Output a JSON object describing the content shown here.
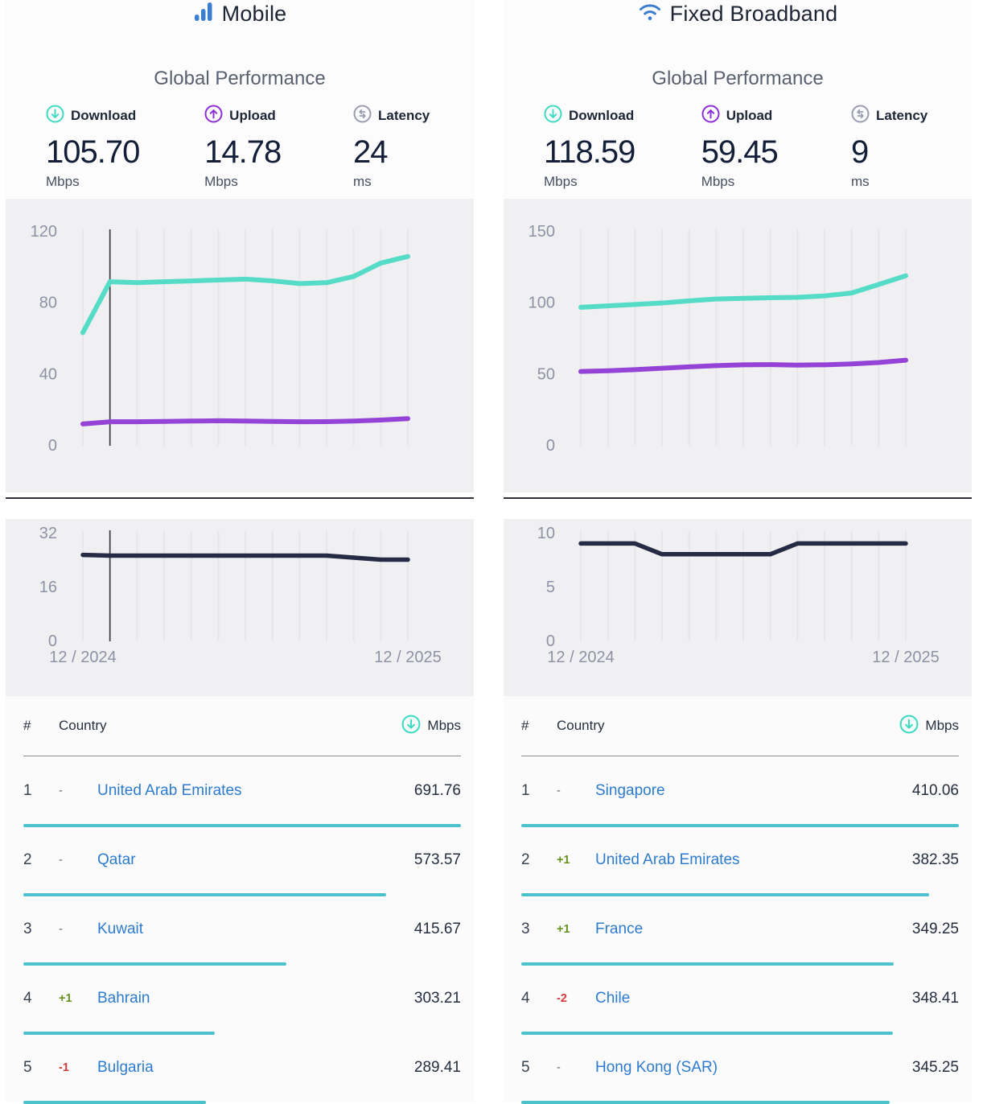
{
  "colors": {
    "brand_blue": "#3c7ed2",
    "download_teal": "#3fdac2",
    "upload_purple": "#8d2ed8",
    "latency_icon_gray": "#9a9db2",
    "line_download": "#55dcc6",
    "line_upload": "#9443d6",
    "line_latency": "#252b45",
    "cursor_line": "#3b3c45",
    "table_bar_teal": "#4cc2cd",
    "country_link_blue": "#2d7bce",
    "delta_up_green": "#67901d",
    "delta_down_red": "#d03b3b"
  },
  "panels": [
    {
      "title": "Mobile",
      "icon": "mobile-signal-bars-icon",
      "section_title": "Global Performance",
      "stats": {
        "download": {
          "label": "Download",
          "value": "105.70",
          "unit": "Mbps"
        },
        "upload": {
          "label": "Upload",
          "value": "14.78",
          "unit": "Mbps"
        },
        "latency": {
          "label": "Latency",
          "value": "24",
          "unit": "ms"
        }
      },
      "x_axis": {
        "start": "12 / 2024",
        "end": "12 / 2025"
      },
      "table": {
        "headers": {
          "rank": "#",
          "country": "Country",
          "speed": "Mbps"
        },
        "max_value": 691.76,
        "rows": [
          {
            "rank": "1",
            "delta": "-",
            "direction": "same",
            "country": "United Arab Emirates",
            "value": "691.76"
          },
          {
            "rank": "2",
            "delta": "-",
            "direction": "same",
            "country": "Qatar",
            "value": "573.57"
          },
          {
            "rank": "3",
            "delta": "-",
            "direction": "same",
            "country": "Kuwait",
            "value": "415.67"
          },
          {
            "rank": "4",
            "delta": "+1",
            "direction": "up",
            "country": "Bahrain",
            "value": "303.21"
          },
          {
            "rank": "5",
            "delta": "-1",
            "direction": "down",
            "country": "Bulgaria",
            "value": "289.41"
          }
        ]
      }
    },
    {
      "title": "Fixed Broadband",
      "icon": "wifi-icon",
      "section_title": "Global Performance",
      "stats": {
        "download": {
          "label": "Download",
          "value": "118.59",
          "unit": "Mbps"
        },
        "upload": {
          "label": "Upload",
          "value": "59.45",
          "unit": "Mbps"
        },
        "latency": {
          "label": "Latency",
          "value": "9",
          "unit": "ms"
        }
      },
      "x_axis": {
        "start": "12 / 2024",
        "end": "12 / 2025"
      },
      "table": {
        "headers": {
          "rank": "#",
          "country": "Country",
          "speed": "Mbps"
        },
        "max_value": 410.06,
        "rows": [
          {
            "rank": "1",
            "delta": "-",
            "direction": "same",
            "country": "Singapore",
            "value": "410.06"
          },
          {
            "rank": "2",
            "delta": "+1",
            "direction": "up",
            "country": "United Arab Emirates",
            "value": "382.35"
          },
          {
            "rank": "3",
            "delta": "+1",
            "direction": "up",
            "country": "France",
            "value": "349.25"
          },
          {
            "rank": "4",
            "delta": "-2",
            "direction": "down",
            "country": "Chile",
            "value": "348.41"
          },
          {
            "rank": "5",
            "delta": "-",
            "direction": "same",
            "country": "Hong Kong (SAR)",
            "value": "345.25"
          }
        ]
      }
    }
  ],
  "chart_data": [
    {
      "name": "mobile-speed-history",
      "type": "line",
      "kind": "speed",
      "title": "Mobile download / upload speed, monthly",
      "categories": [
        "12/2024",
        "01/2025",
        "02/2025",
        "03/2025",
        "04/2025",
        "05/2025",
        "06/2025",
        "07/2025",
        "08/2025",
        "09/2025",
        "10/2025",
        "11/2025",
        "12/2025"
      ],
      "yticks": [
        0,
        40,
        80,
        120
      ],
      "ylim": [
        0,
        120
      ],
      "cursor_index": 1,
      "x_labels_shown": [],
      "series": [
        {
          "name": "Download",
          "color": "#55dcc6",
          "values": [
            63,
            91.5,
            91,
            91.5,
            92,
            92.5,
            93,
            92,
            90.5,
            91,
            94.5,
            102,
            105.7
          ]
        },
        {
          "name": "Upload",
          "color": "#9443d6",
          "values": [
            11.8,
            13,
            13,
            13.2,
            13.4,
            13.6,
            13.4,
            13.2,
            13,
            13.1,
            13.4,
            14,
            14.78
          ]
        }
      ]
    },
    {
      "name": "mobile-latency-history",
      "type": "line",
      "kind": "latency",
      "title": "Mobile latency, monthly",
      "categories": [
        "12/2024",
        "01/2025",
        "02/2025",
        "03/2025",
        "04/2025",
        "05/2025",
        "06/2025",
        "07/2025",
        "08/2025",
        "09/2025",
        "10/2025",
        "11/2025",
        "12/2025"
      ],
      "yticks": [
        0,
        16,
        32
      ],
      "ylim": [
        0,
        32
      ],
      "cursor_index": 1,
      "x_labels_shown": [
        "12 / 2024",
        "12 / 2025"
      ],
      "series": [
        {
          "name": "Latency",
          "color": "#252b45",
          "values": [
            25.4,
            25.2,
            25.2,
            25.2,
            25.2,
            25.2,
            25.2,
            25.2,
            25.2,
            25.2,
            24.6,
            24,
            24
          ]
        }
      ]
    },
    {
      "name": "fixed-speed-history",
      "type": "line",
      "kind": "speed",
      "title": "Fixed broadband download / upload speed, monthly",
      "categories": [
        "12/2024",
        "01/2025",
        "02/2025",
        "03/2025",
        "04/2025",
        "05/2025",
        "06/2025",
        "07/2025",
        "08/2025",
        "09/2025",
        "10/2025",
        "11/2025",
        "12/2025"
      ],
      "yticks": [
        0,
        50,
        100,
        150
      ],
      "ylim": [
        0,
        150
      ],
      "cursor_index": null,
      "x_labels_shown": [],
      "series": [
        {
          "name": "Download",
          "color": "#55dcc6",
          "values": [
            96.5,
            97.5,
            98.5,
            99.5,
            101,
            102.3,
            102.8,
            103.2,
            103.5,
            104.5,
            106.5,
            112.5,
            118.59
          ]
        },
        {
          "name": "Upload",
          "color": "#9443d6",
          "values": [
            51.5,
            52,
            52.8,
            53.8,
            54.8,
            55.6,
            56.2,
            56.3,
            56,
            56.2,
            56.8,
            57.8,
            59.45
          ]
        }
      ]
    },
    {
      "name": "fixed-latency-history",
      "type": "line",
      "kind": "latency",
      "title": "Fixed broadband latency, monthly",
      "categories": [
        "12/2024",
        "01/2025",
        "02/2025",
        "03/2025",
        "04/2025",
        "05/2025",
        "06/2025",
        "07/2025",
        "08/2025",
        "09/2025",
        "10/2025",
        "11/2025",
        "12/2025"
      ],
      "yticks": [
        0,
        5,
        10
      ],
      "ylim": [
        0,
        10
      ],
      "cursor_index": null,
      "x_labels_shown": [
        "12 / 2024",
        "12 / 2025"
      ],
      "series": [
        {
          "name": "Latency",
          "color": "#252b45",
          "values": [
            9,
            9,
            9,
            8,
            8,
            8,
            8,
            8,
            9,
            9,
            9,
            9,
            9
          ]
        }
      ]
    }
  ]
}
